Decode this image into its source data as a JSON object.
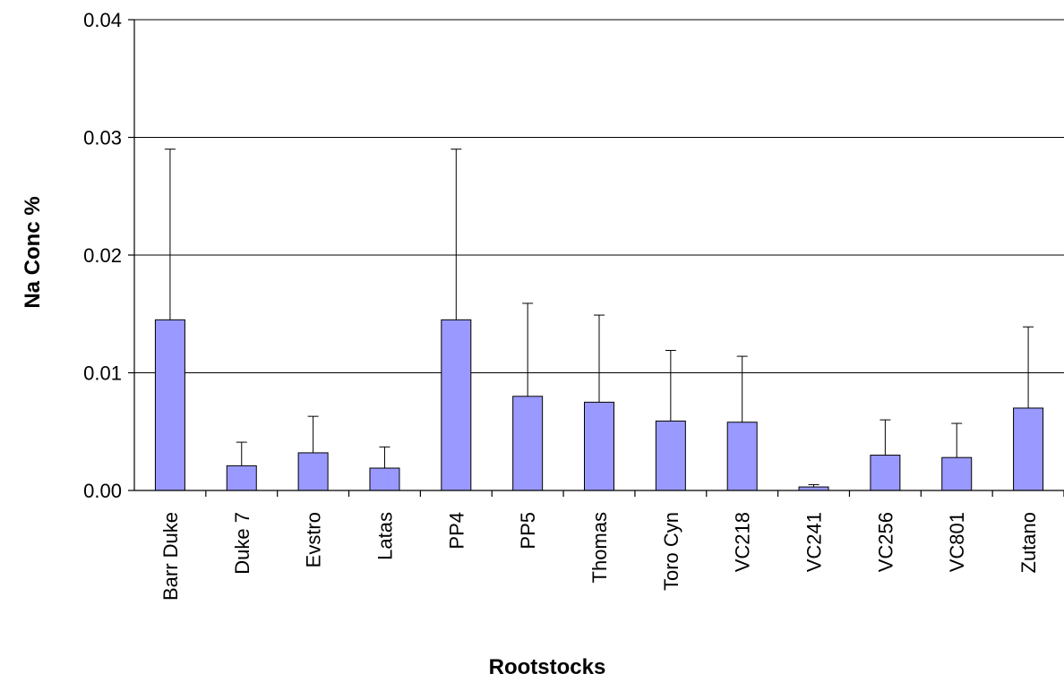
{
  "chart_data": {
    "type": "bar",
    "title": "",
    "xlabel": "Rootstocks",
    "ylabel": "Na Conc %",
    "ylim": [
      0,
      0.04
    ],
    "yticks": [
      "0.00",
      "0.01",
      "0.02",
      "0.03",
      "0.04"
    ],
    "ytick_values": [
      0,
      0.01,
      0.02,
      0.03,
      0.04
    ],
    "grid": true,
    "categories": [
      "Barr Duke",
      "Duke 7",
      "Evstro",
      "Latas",
      "PP4",
      "PP5",
      "Thomas",
      "Toro Cyn",
      "VC218",
      "VC241",
      "VC256",
      "VC801",
      "Zutano"
    ],
    "values": [
      0.0145,
      0.0021,
      0.0032,
      0.0019,
      0.0145,
      0.008,
      0.0075,
      0.0059,
      0.0058,
      0.0003,
      0.003,
      0.0028,
      0.007
    ],
    "error_upper": [
      0.029,
      0.0041,
      0.0063,
      0.0037,
      0.029,
      0.0159,
      0.0149,
      0.0119,
      0.0114,
      0.0005,
      0.006,
      0.0057,
      0.0139
    ],
    "bar_color": "#9999FF"
  }
}
